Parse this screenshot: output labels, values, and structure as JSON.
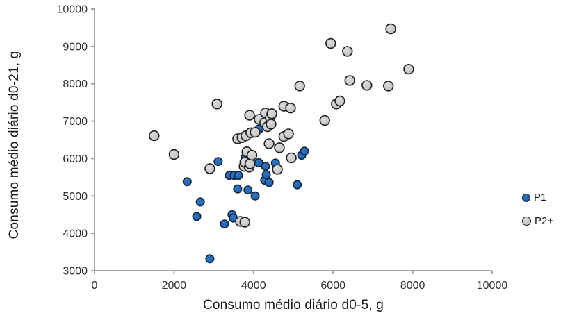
{
  "chart_data": {
    "type": "scatter",
    "title": "",
    "xlabel": "Consumo médio diário d0-5, g",
    "ylabel": "Consumo médio diário d0-21, g",
    "xlim": [
      0,
      10000
    ],
    "ylim": [
      3000,
      10000
    ],
    "x_ticks": [
      0,
      2000,
      4000,
      6000,
      8000,
      10000
    ],
    "y_ticks": [
      3000,
      4000,
      5000,
      6000,
      7000,
      8000,
      9000,
      10000
    ],
    "grid": false,
    "legend_position": "right",
    "axis_color": "#9c9c9c",
    "tick_label_color": "#2e2e2e",
    "series": [
      {
        "name": "P1",
        "fill": "#2063ae",
        "fill_light": "#2e74c0",
        "border": "#10243c",
        "marker_radius": 5.7,
        "points": [
          [
            2330,
            5380
          ],
          [
            2570,
            4450
          ],
          [
            2660,
            4840
          ],
          [
            2900,
            3320
          ],
          [
            3110,
            5920
          ],
          [
            3270,
            4250
          ],
          [
            3390,
            5550
          ],
          [
            3460,
            4500
          ],
          [
            3490,
            4410
          ],
          [
            3510,
            5550
          ],
          [
            3600,
            5190
          ],
          [
            3620,
            5550
          ],
          [
            3790,
            6030
          ],
          [
            3860,
            5160
          ],
          [
            4040,
            5000
          ],
          [
            4130,
            5890
          ],
          [
            4140,
            6790
          ],
          [
            4280,
            5420
          ],
          [
            4300,
            5790
          ],
          [
            4320,
            5570
          ],
          [
            4390,
            5360
          ],
          [
            4550,
            5880
          ],
          [
            5100,
            5300
          ],
          [
            5210,
            6090
          ],
          [
            5280,
            6200
          ]
        ]
      },
      {
        "name": "P2+",
        "fill": "#c2c2c2",
        "fill_light": "#dcdcdc",
        "border": "#1f1f1f",
        "marker_radius": 6.9,
        "points": [
          [
            1500,
            6610
          ],
          [
            2000,
            6110
          ],
          [
            2900,
            5730
          ],
          [
            3080,
            7460
          ],
          [
            3600,
            6530
          ],
          [
            3670,
            4320
          ],
          [
            3710,
            6560
          ],
          [
            3760,
            5790
          ],
          [
            3780,
            4300
          ],
          [
            3780,
            5900
          ],
          [
            3810,
            6610
          ],
          [
            3830,
            6180
          ],
          [
            3890,
            5770
          ],
          [
            3900,
            7160
          ],
          [
            3910,
            5860
          ],
          [
            3930,
            6690
          ],
          [
            3960,
            6090
          ],
          [
            4040,
            6700
          ],
          [
            4140,
            7050
          ],
          [
            4280,
            6960
          ],
          [
            4300,
            7220
          ],
          [
            4350,
            6850
          ],
          [
            4390,
            6400
          ],
          [
            4420,
            7090
          ],
          [
            4440,
            6920
          ],
          [
            4460,
            7200
          ],
          [
            4600,
            5710
          ],
          [
            4650,
            6290
          ],
          [
            4760,
            6590
          ],
          [
            4760,
            7400
          ],
          [
            4880,
            6660
          ],
          [
            4930,
            7350
          ],
          [
            4950,
            6020
          ],
          [
            5160,
            7940
          ],
          [
            5790,
            7020
          ],
          [
            5940,
            9080
          ],
          [
            6080,
            7460
          ],
          [
            6170,
            7540
          ],
          [
            6360,
            8870
          ],
          [
            6420,
            8090
          ],
          [
            6850,
            7960
          ],
          [
            7390,
            7940
          ],
          [
            7450,
            9470
          ],
          [
            7900,
            8390
          ]
        ]
      }
    ]
  }
}
